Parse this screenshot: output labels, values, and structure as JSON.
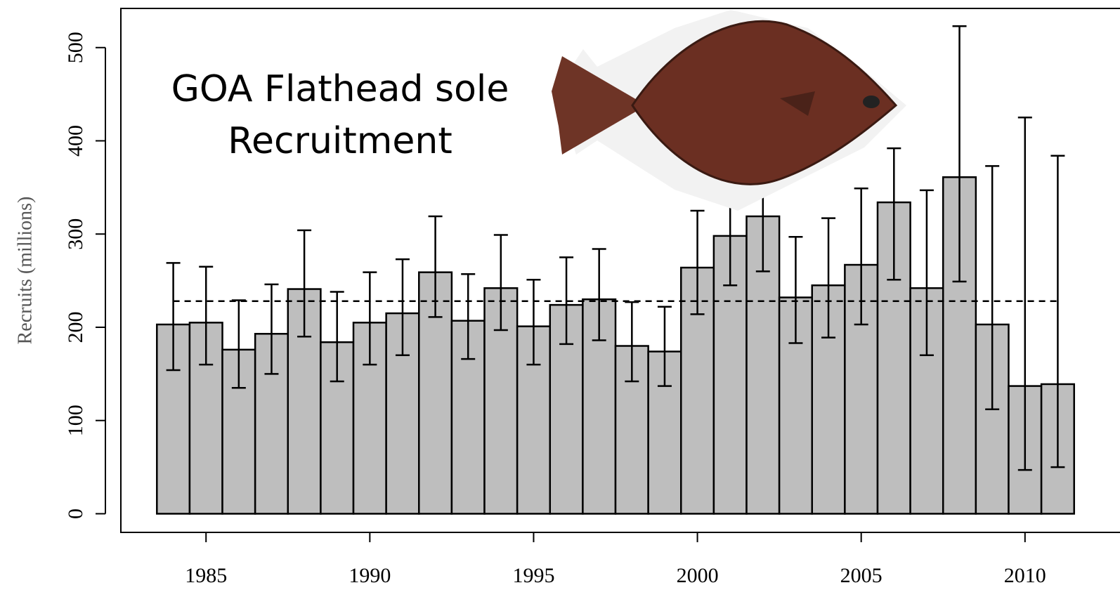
{
  "chart_data": {
    "type": "bar",
    "annotation": [
      "GOA Flathead sole",
      "Recruitment"
    ],
    "y_label": "Recruits (millions)",
    "x": [
      1984,
      1985,
      1986,
      1987,
      1988,
      1989,
      1990,
      1991,
      1992,
      1993,
      1994,
      1995,
      1996,
      1997,
      1998,
      1999,
      2000,
      2001,
      2002,
      2003,
      2004,
      2005,
      2006,
      2007,
      2008,
      2009,
      2010,
      2011
    ],
    "values": [
      203,
      205,
      176,
      193,
      241,
      184,
      205,
      215,
      259,
      207,
      242,
      201,
      224,
      230,
      180,
      174,
      264,
      298,
      319,
      232,
      245,
      267,
      334,
      242,
      361,
      203,
      137,
      139
    ],
    "lower": [
      154,
      160,
      135,
      150,
      190,
      142,
      160,
      170,
      211,
      166,
      197,
      160,
      182,
      186,
      142,
      137,
      214,
      245,
      260,
      183,
      189,
      203,
      251,
      170,
      249,
      112,
      47,
      50
    ],
    "upper": [
      269,
      265,
      229,
      246,
      304,
      238,
      259,
      273,
      319,
      257,
      299,
      251,
      275,
      284,
      227,
      222,
      325,
      355,
      380,
      297,
      317,
      349,
      392,
      347,
      523,
      373,
      425,
      384
    ],
    "mean": 228,
    "color": "#bebebe",
    "xlim": [
      1982.4,
      2012.9
    ],
    "ylim": [
      -20,
      542
    ],
    "xticks": [
      1985,
      1990,
      1995,
      2000,
      2005,
      2010
    ],
    "yticks": [
      0,
      100,
      200,
      300,
      400,
      500
    ]
  }
}
